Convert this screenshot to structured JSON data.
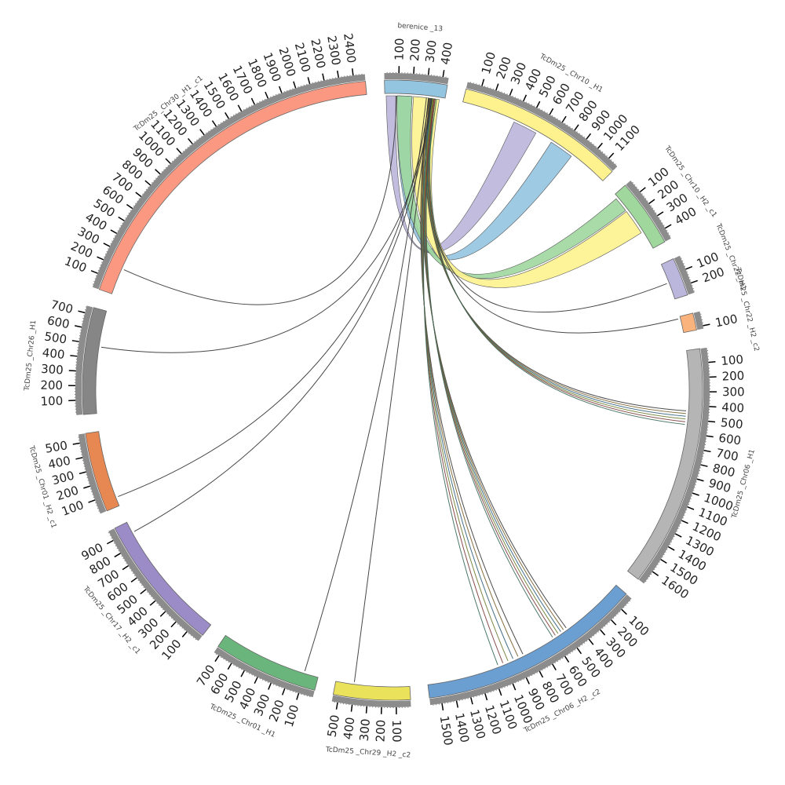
{
  "chart_data": {
    "type": "circos",
    "segments": [
      {
        "name": "berenice _13",
        "length": 440,
        "color": "#93c4e0",
        "ticks": [
          100,
          200,
          300,
          400
        ]
      },
      {
        "name": "TcDm25 _Chr10 _H1",
        "length": 1180,
        "color": "#fdf28e",
        "ticks": [
          100,
          200,
          300,
          400,
          500,
          600,
          700,
          800,
          900,
          1000,
          1100
        ]
      },
      {
        "name": "TcDm25 _Chr10 _H2 _c1",
        "length": 480,
        "color": "#9fd79d",
        "ticks": [
          100,
          200,
          300,
          400
        ]
      },
      {
        "name": "TcDm25 _Chr22 _H1",
        "length": 270,
        "color": "#bbb6dc",
        "ticks": [
          100,
          200
        ]
      },
      {
        "name": "TcDm25 _Chr22 _H2 _c2",
        "length": 120,
        "color": "#fbb37d",
        "ticks": [
          100
        ]
      },
      {
        "name": "TcDm25 _Chr06 _H1",
        "length": 1700,
        "color": "#b5b5b5",
        "ticks": [
          100,
          200,
          300,
          400,
          500,
          600,
          700,
          800,
          900,
          1000,
          1100,
          1200,
          1300,
          1400,
          1500,
          1600
        ]
      },
      {
        "name": "TcDm25 _Chr06 _H2 _c2",
        "length": 1580,
        "color": "#6b9fd2",
        "ticks": [
          100,
          200,
          300,
          400,
          500,
          600,
          700,
          800,
          900,
          1000,
          1100,
          1200,
          1300,
          1400,
          1500
        ]
      },
      {
        "name": "TcDm25 _Chr29 _H2 _c2",
        "length": 540,
        "color": "#ebe25c",
        "ticks": [
          100,
          200,
          300,
          400,
          500
        ]
      },
      {
        "name": "TcDm25 _Chr01 _H1",
        "length": 740,
        "color": "#6ab57b",
        "ticks": [
          100,
          200,
          300,
          400,
          500,
          600,
          700
        ]
      },
      {
        "name": "TcDm25 _Chr17 _H2 _c1",
        "length": 970,
        "color": "#9b8bc6",
        "ticks": [
          100,
          200,
          300,
          400,
          500,
          600,
          700,
          800,
          900
        ]
      },
      {
        "name": "TcDm25 _Chr01 _H2 _c1",
        "length": 560,
        "color": "#e78853",
        "ticks": [
          100,
          200,
          300,
          400,
          500
        ]
      },
      {
        "name": "TcDm25 _Chr26 _H1",
        "length": 750,
        "color": "#868686",
        "ticks": [
          100,
          200,
          300,
          400,
          500,
          600,
          700
        ]
      },
      {
        "name": "TcDm25 _Chr30 _H1 _c1",
        "length": 2480,
        "color": "#fb9881",
        "ticks": [
          100,
          200,
          300,
          400,
          500,
          600,
          700,
          800,
          900,
          1000,
          1100,
          1200,
          1300,
          1400,
          1500,
          1600,
          1700,
          1800,
          1900,
          2000,
          2100,
          2200,
          2300,
          2400
        ]
      }
    ],
    "links": [
      {
        "source": "berenice _13",
        "source_range": [
          10,
          80
        ],
        "target": "TcDm25 _Chr10 _H1",
        "target_range": [
          400,
          580
        ],
        "color": "#bbb6dc",
        "kind": "ribbon"
      },
      {
        "source": "berenice _13",
        "source_range": [
          90,
          200
        ],
        "target": "TcDm25 _Chr10 _H1",
        "target_range": [
          710,
          890
        ],
        "color": "#93c4e0",
        "kind": "ribbon"
      },
      {
        "source": "berenice _13",
        "source_range": [
          90,
          200
        ],
        "target": "TcDm25 _Chr10 _H2 _c1",
        "target_range": [
          30,
          140
        ],
        "color": "#9fd79d",
        "kind": "ribbon"
      },
      {
        "source": "berenice _13",
        "source_range": [
          210,
          400
        ],
        "target": "TcDm25 _Chr10 _H2 _c1",
        "target_range": [
          150,
          340
        ],
        "color": "#fdf28e",
        "kind": "ribbon"
      },
      {
        "source": "berenice _13",
        "source_range": [
          350,
          362
        ],
        "target": "TcDm25 _Chr22 _H1",
        "target_range": [
          140,
          150
        ],
        "color": "#333333",
        "kind": "line"
      },
      {
        "source": "berenice _13",
        "source_range": [
          340,
          352
        ],
        "target": "TcDm25 _Chr22 _H2 _c2",
        "target_range": [
          10,
          20
        ],
        "color": "#333333",
        "kind": "line"
      },
      {
        "source": "berenice _13",
        "source_range": [
          330,
          370
        ],
        "target": "TcDm25 _Chr06 _H1",
        "target_range": [
          440,
          540
        ],
        "color": "#444444",
        "kind": "bundle"
      },
      {
        "source": "berenice _13",
        "source_range": [
          320,
          370
        ],
        "target": "TcDm25 _Chr06 _H2 _c2",
        "target_range": [
          480,
          600
        ],
        "color": "#444444",
        "kind": "bundle"
      },
      {
        "source": "berenice _13",
        "source_range": [
          320,
          380
        ],
        "target": "TcDm25 _Chr06 _H2 _c2",
        "target_range": [
          850,
          1050
        ],
        "color": "#555555",
        "kind": "bundle"
      },
      {
        "source": "berenice _13",
        "source_range": [
          330,
          340
        ],
        "target": "TcDm25 _Chr29 _H2 _c2",
        "target_range": [
          400,
          410
        ],
        "color": "#333333",
        "kind": "line"
      },
      {
        "source": "berenice _13",
        "source_range": [
          300,
          310
        ],
        "target": "TcDm25 _Chr01 _H1",
        "target_range": [
          100,
          110
        ],
        "color": "#333333",
        "kind": "line"
      },
      {
        "source": "berenice _13",
        "source_range": [
          340,
          350
        ],
        "target": "TcDm25 _Chr17 _H2 _c1",
        "target_range": [
          880,
          890
        ],
        "color": "#333333",
        "kind": "line"
      },
      {
        "source": "berenice _13",
        "source_range": [
          320,
          330
        ],
        "target": "TcDm25 _Chr01 _H2 _c1",
        "target_range": [
          60,
          70
        ],
        "color": "#333333",
        "kind": "line"
      },
      {
        "source": "berenice _13",
        "source_range": [
          340,
          350
        ],
        "target": "TcDm25 _Chr26 _H1",
        "target_range": [
          480,
          490
        ],
        "color": "#333333",
        "kind": "line"
      },
      {
        "source": "berenice _13",
        "source_range": [
          80,
          90
        ],
        "target": "TcDm25 _Chr30 _H1 _c1",
        "target_range": [
          190,
          200
        ],
        "color": "#333333",
        "kind": "line"
      }
    ]
  }
}
